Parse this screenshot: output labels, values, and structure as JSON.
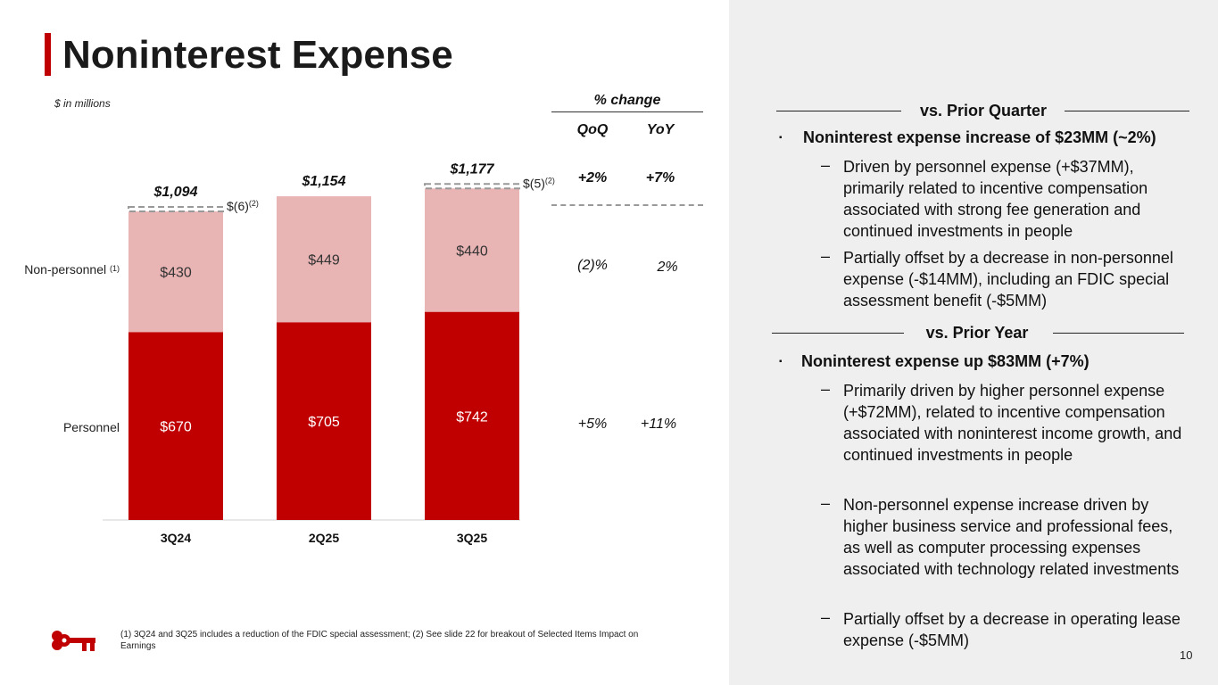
{
  "slide": {
    "title": "Noninterest Expense",
    "units_note": "$ in millions",
    "page_number": "10",
    "footnote": "(1) 3Q24 and 3Q25 includes a reduction of the FDIC special assessment; (2) See slide 22 for breakout of Selected Items Impact on Earnings"
  },
  "chart_data": {
    "type": "bar",
    "stacked": true,
    "categories": [
      "3Q24",
      "2Q25",
      "3Q25"
    ],
    "series": [
      {
        "name": "Personnel",
        "values": [
          670,
          705,
          742
        ],
        "labels": [
          "$670",
          "$705",
          "$742"
        ],
        "color": "#c00000"
      },
      {
        "name": "Non-personnel",
        "name_sup": "(1)",
        "values": [
          430,
          449,
          440
        ],
        "labels": [
          "$430",
          "$449",
          "$440"
        ],
        "color": "#e8b4b4"
      }
    ],
    "totals": [
      "$1,094",
      "$1,154",
      "$1,177"
    ],
    "adjustments": [
      {
        "category": "3Q24",
        "value": -6,
        "label": "$(6)",
        "sup": "(2)"
      },
      {
        "category": "3Q25",
        "value": -5,
        "label": "$(5)",
        "sup": "(2)"
      }
    ],
    "ylim": [
      0,
      1250
    ],
    "xlabel": "",
    "ylabel": ""
  },
  "pct_change": {
    "header": "% change",
    "columns": [
      "QoQ",
      "YoY"
    ],
    "total": [
      "+2%",
      "+7%"
    ],
    "non_personnel": [
      "(2)%",
      "2%"
    ],
    "personnel": [
      "+5%",
      "+11%"
    ]
  },
  "commentary": {
    "prior_quarter": {
      "heading": "vs. Prior Quarter",
      "bullet": "Noninterest expense increase of $23MM (~2%)",
      "subs": [
        "Driven by personnel expense (+$37MM), primarily related to incentive compensation associated with strong fee generation and continued investments in people",
        "Partially offset by a decrease in non-personnel expense (-$14MM), including an FDIC special assessment benefit (-$5MM)"
      ]
    },
    "prior_year": {
      "heading": "vs. Prior Year",
      "bullet": "Noninterest expense up $83MM (+7%)",
      "subs": [
        "Primarily driven by higher personnel expense (+$72MM), related to incentive compensation associated with noninterest income growth, and continued investments in people",
        "Non-personnel expense increase driven by higher business service and professional fees, as well as computer processing expenses associated with technology related investments",
        "Partially offset by a decrease in operating lease expense (-$5MM)"
      ]
    },
    "bullet_symbol": "▪",
    "dash_symbol": "–"
  },
  "colors": {
    "accent": "#c00000",
    "light": "#e8b4b4",
    "panel": "#efefef"
  }
}
